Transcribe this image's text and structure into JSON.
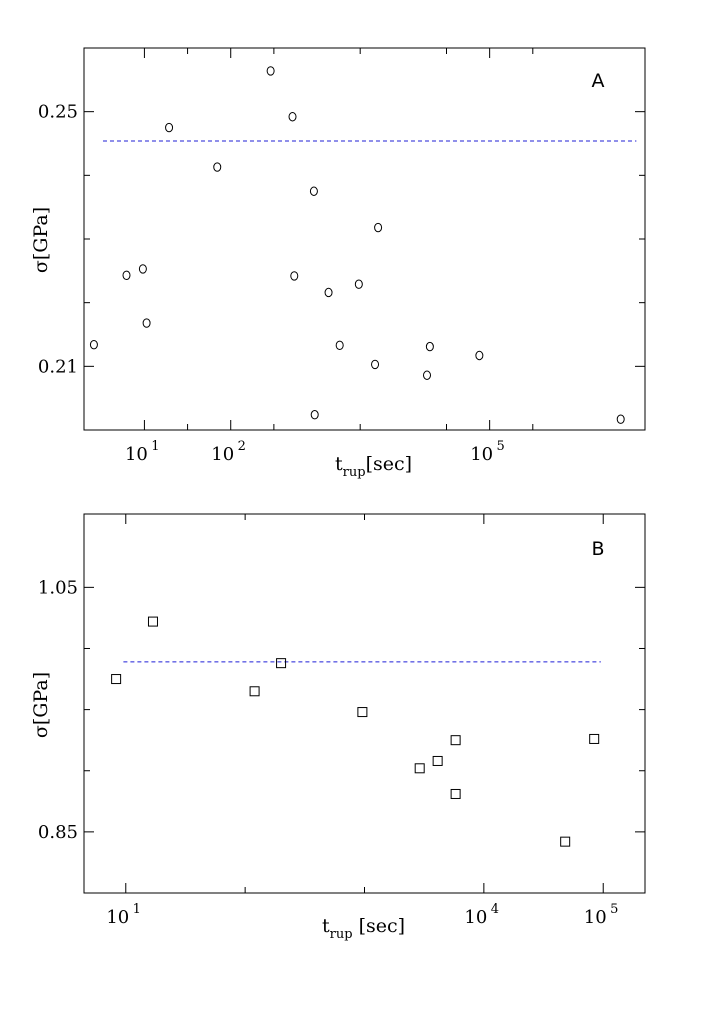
{
  "chart_data": [
    {
      "type": "scatter",
      "panel_label": "A",
      "xlabel": {
        "main": "t",
        "sub": "rup",
        "rest": "[sec]"
      },
      "ylabel": "σ[GPa]",
      "xscale": "log",
      "xlim_log10": [
        0.3,
        6.8
      ],
      "ylim": [
        0.2,
        0.26
      ],
      "yticks": [
        0.21,
        0.25
      ],
      "yticks_labels": [
        "0.21",
        "0.25"
      ],
      "xticks_labels": [
        {
          "base": "10",
          "exp": "1",
          "log10": 1
        },
        {
          "base": "10",
          "exp": "2",
          "log10": 2
        },
        {
          "base": "10",
          "exp": "5",
          "log10": 5
        }
      ],
      "marker": "ellipse",
      "points": [
        {
          "x": 2.6,
          "y": 0.2134
        },
        {
          "x": 6.2,
          "y": 0.2243
        },
        {
          "x": 9.6,
          "y": 0.2253
        },
        {
          "x": 10.6,
          "y": 0.2168
        },
        {
          "x": 19.3,
          "y": 0.2475
        },
        {
          "x": 69.8,
          "y": 0.2413
        },
        {
          "x": 290,
          "y": 0.2564
        },
        {
          "x": 520,
          "y": 0.2492
        },
        {
          "x": 545,
          "y": 0.2242
        },
        {
          "x": 920,
          "y": 0.2375
        },
        {
          "x": 940,
          "y": 0.2024
        },
        {
          "x": 1360,
          "y": 0.2216
        },
        {
          "x": 1830,
          "y": 0.2133
        },
        {
          "x": 3050,
          "y": 0.2229
        },
        {
          "x": 4700,
          "y": 0.2103
        },
        {
          "x": 5100,
          "y": 0.2318
        },
        {
          "x": 18800,
          "y": 0.2086
        },
        {
          "x": 20300,
          "y": 0.2131
        },
        {
          "x": 76000,
          "y": 0.2117
        },
        {
          "x": 3300000,
          "y": 0.2017
        }
      ],
      "reference_line": {
        "y": 0.2454,
        "x_from_log10": 0.52,
        "x_to_log10": 6.7,
        "color": "#1f1fd6"
      }
    },
    {
      "type": "scatter",
      "panel_label": "B",
      "xlabel": {
        "main": "t",
        "sub": "rup",
        "rest": " [sec]"
      },
      "ylabel": "σ[GPa]",
      "xscale": "log",
      "xlim_log10": [
        0.65,
        5.35
      ],
      "ylim": [
        0.8,
        1.11
      ],
      "yticks": [
        0.85,
        1.05
      ],
      "yticks_labels": [
        "0.85",
        "1.05"
      ],
      "xticks_labels": [
        {
          "base": "10",
          "exp": "1",
          "log10": 1
        },
        {
          "base": "10",
          "exp": "4",
          "log10": 4
        },
        {
          "base": "10",
          "exp": "5",
          "log10": 5
        }
      ],
      "marker": "square",
      "points": [
        {
          "x": 8.3,
          "y": 0.975
        },
        {
          "x": 16.9,
          "y": 1.022
        },
        {
          "x": 120,
          "y": 0.965
        },
        {
          "x": 200,
          "y": 0.988
        },
        {
          "x": 960,
          "y": 0.948
        },
        {
          "x": 2900,
          "y": 0.902
        },
        {
          "x": 4100,
          "y": 0.908
        },
        {
          "x": 5800,
          "y": 0.925
        },
        {
          "x": 5800,
          "y": 0.881
        },
        {
          "x": 48000,
          "y": 0.842
        },
        {
          "x": 84000,
          "y": 0.926
        }
      ],
      "reference_line": {
        "y": 0.989,
        "x_from_log10": 0.98,
        "x_to_log10": 4.98,
        "color": "#1f1fd6"
      }
    }
  ]
}
